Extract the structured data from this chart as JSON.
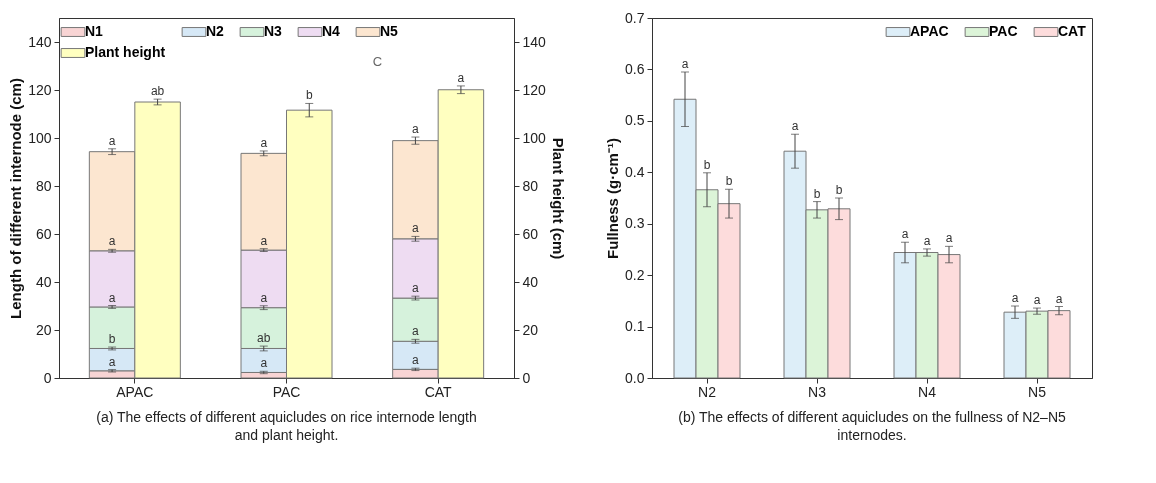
{
  "chart_data": [
    {
      "type": "bar",
      "stacked": true,
      "categories": [
        "APAC",
        "PAC",
        "CAT"
      ],
      "ylabel": "Length of different internode (cm)",
      "y2label": "Plant height (cm)",
      "ylim": [
        0,
        150
      ],
      "yticks": [
        0,
        20,
        40,
        60,
        80,
        100,
        120,
        140
      ],
      "y2lim": [
        0,
        150
      ],
      "y2ticks": [
        0,
        20,
        40,
        60,
        80,
        100,
        120,
        140
      ],
      "grid": false,
      "legend": "top left",
      "annotations": [
        "C",
        "(a) The effects of different aquicludes on rice internode length and plant height."
      ],
      "series": [
        {
          "name": "N1",
          "color": "#f8d4d4",
          "values": [
            3,
            2.3,
            3.6
          ],
          "errors": [
            0.5,
            0.5,
            0.5
          ],
          "value_labels": [
            "a",
            "a",
            "a"
          ]
        },
        {
          "name": "N2",
          "color": "#d6e8f6",
          "values": [
            9.3,
            10,
            11.7
          ],
          "errors": [
            0.6,
            1,
            0.8
          ],
          "value_labels": [
            "b",
            "ab",
            "a"
          ]
        },
        {
          "name": "N3",
          "color": "#d6f2dc",
          "values": [
            17.3,
            17,
            18
          ],
          "errors": [
            0.6,
            0.8,
            0.8
          ],
          "value_labels": [
            "a",
            "a",
            "a"
          ]
        },
        {
          "name": "N4",
          "color": "#eedcf2",
          "values": [
            23.4,
            24,
            24.7
          ],
          "errors": [
            0.6,
            0.6,
            1
          ],
          "value_labels": [
            "a",
            "a",
            "a"
          ]
        },
        {
          "name": "N5",
          "color": "#fce6d0",
          "values": [
            41.3,
            40.3,
            40.9
          ],
          "errors": [
            1.2,
            1,
            1.5
          ],
          "value_labels": [
            "a",
            "a",
            "a"
          ]
        },
        {
          "name": "Plant height",
          "color": "#ffffc0",
          "axis": "y2",
          "values": [
            115,
            111.6,
            120.1
          ],
          "errors": [
            1.2,
            2.8,
            1.6
          ],
          "value_labels": [
            "ab",
            "b",
            "a"
          ]
        }
      ]
    },
    {
      "type": "bar",
      "categories": [
        "N2",
        "N3",
        "N4",
        "N5"
      ],
      "ylabel": "Fullness (g·cm⁻¹)",
      "ylim": [
        0,
        0.7
      ],
      "yticks": [
        {
          "value": 0,
          "label": "0.0"
        },
        0.1,
        0.2,
        0.3,
        0.4,
        0.5,
        0.6,
        0.7
      ],
      "grid": false,
      "legend": "top right",
      "annotations": [
        "(b) The effects of different aquicludes on the fullness of N2–N5 internodes."
      ],
      "series": [
        {
          "name": "APAC",
          "color": "#ddeef8",
          "values": [
            0.542,
            0.441,
            0.244,
            0.128
          ],
          "errors": [
            0.053,
            0.033,
            0.02,
            0.012
          ],
          "value_labels": [
            "a",
            "a",
            "a",
            "a"
          ]
        },
        {
          "name": "PAC",
          "color": "#dcf4d8",
          "values": [
            0.366,
            0.327,
            0.244,
            0.13
          ],
          "errors": [
            0.033,
            0.016,
            0.007,
            0.006
          ],
          "value_labels": [
            "b",
            "b",
            "a",
            "a"
          ]
        },
        {
          "name": "CAT",
          "color": "#fddcdc",
          "values": [
            0.339,
            0.329,
            0.24,
            0.131
          ],
          "errors": [
            0.028,
            0.021,
            0.016,
            0.008
          ],
          "value_labels": [
            "b",
            "b",
            "a",
            "a"
          ]
        }
      ]
    }
  ]
}
